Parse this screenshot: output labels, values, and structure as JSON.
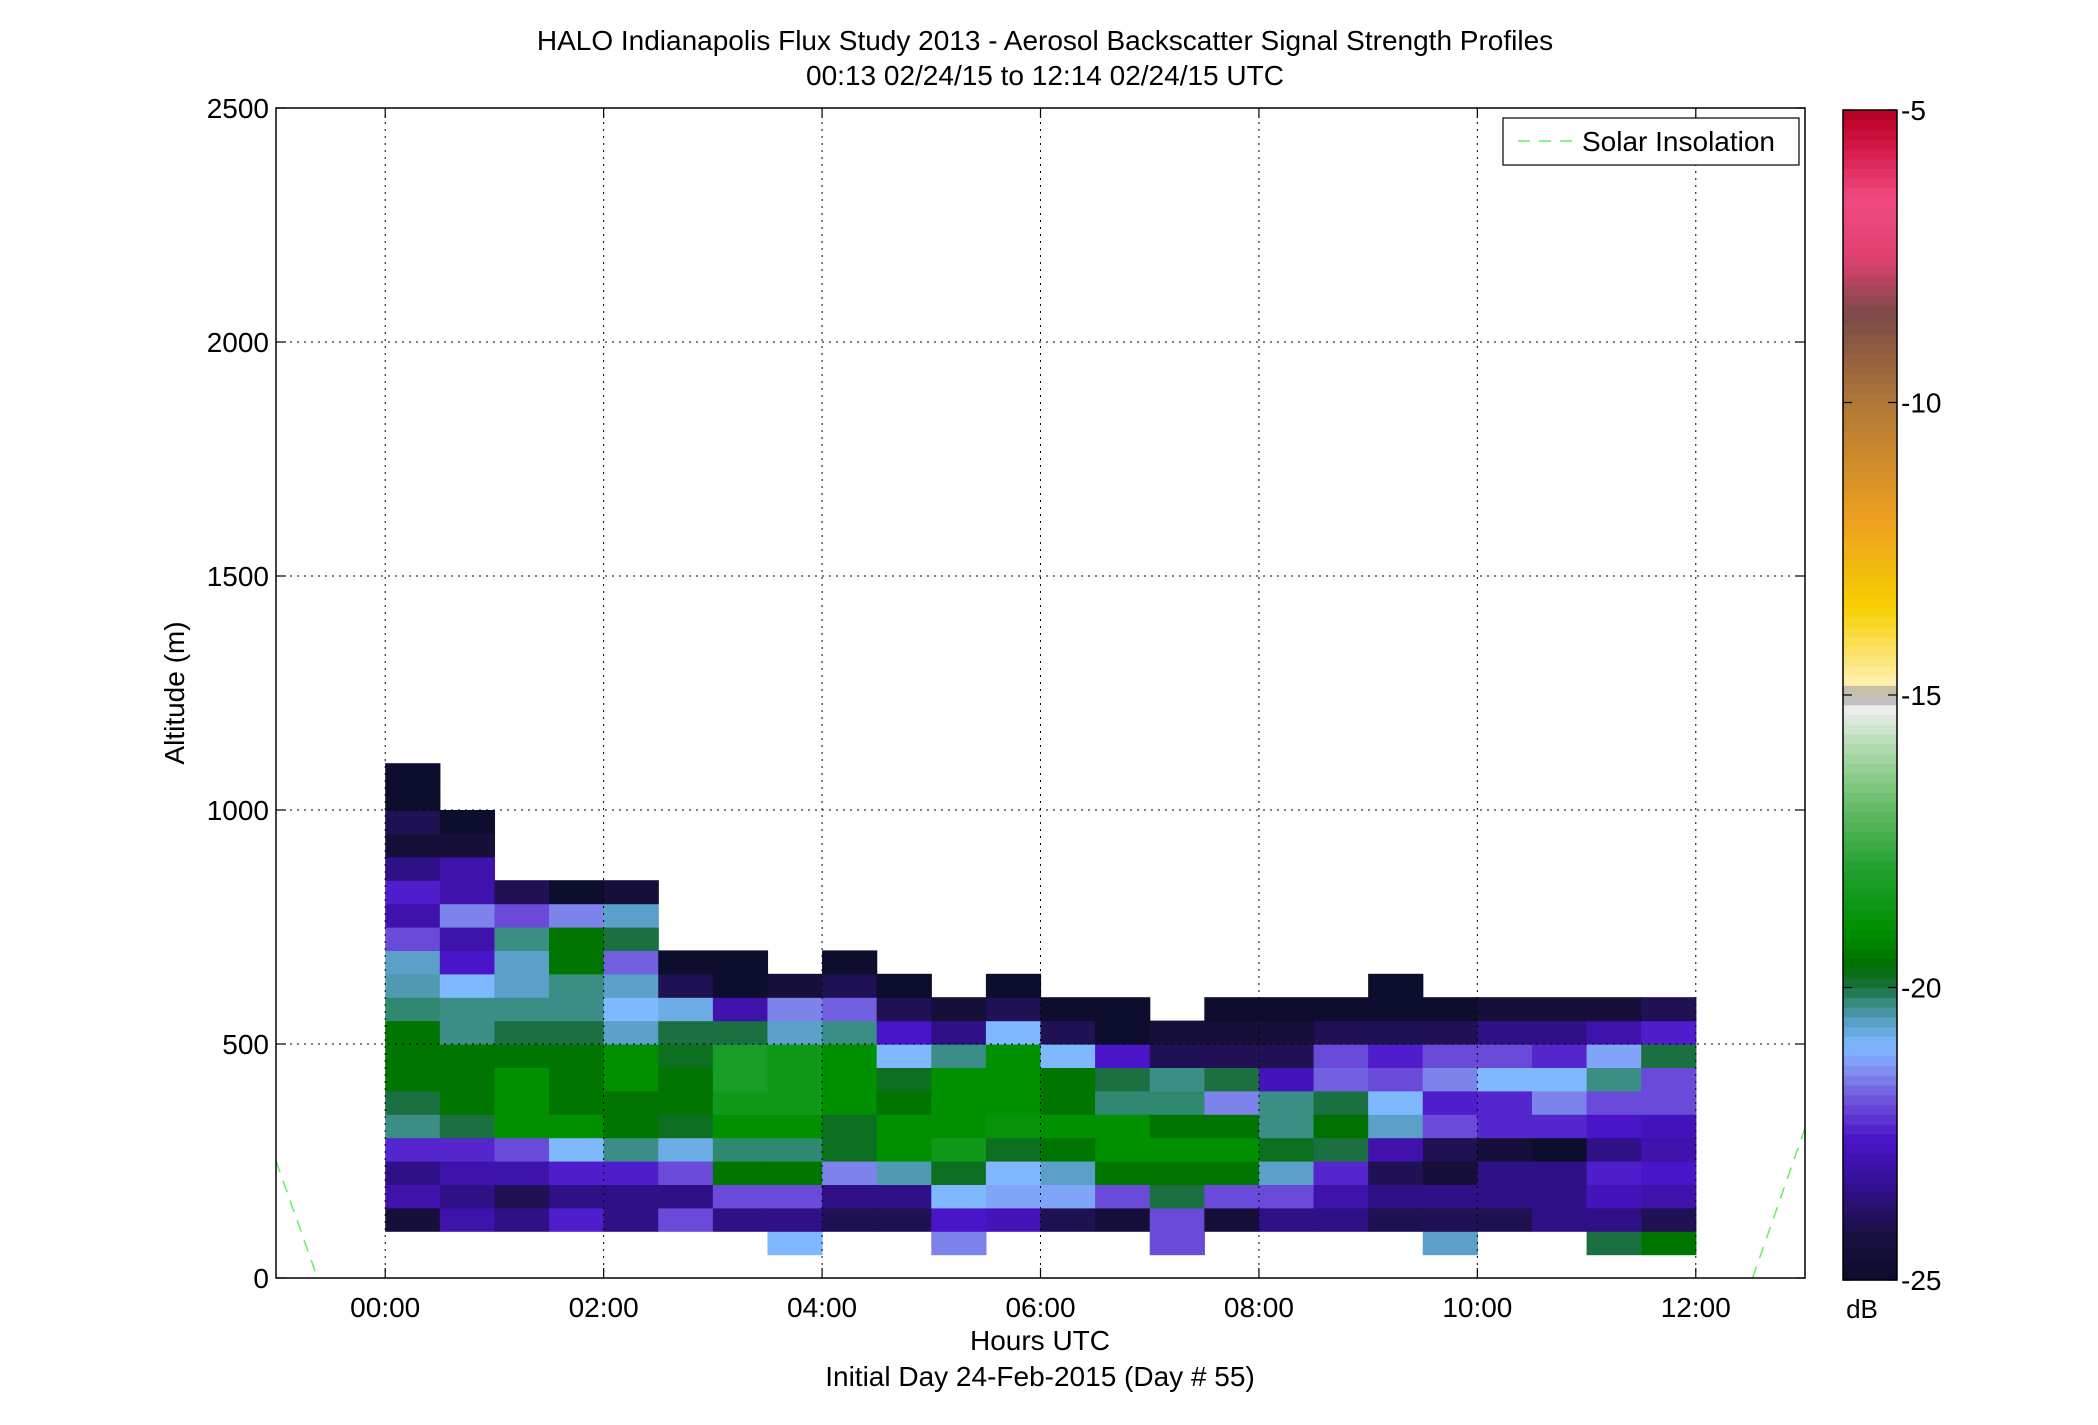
{
  "chart_data": {
    "type": "heatmap",
    "title": "HALO Indianapolis Flux Study 2013 - Aerosol Backscatter Signal Strength Profiles",
    "subtitle": "00:13 02/24/15 to 12:14 02/24/15  UTC",
    "xlabel": "Hours UTC",
    "xlabel2": "Initial Day 24-Feb-2015 (Day # 55)",
    "ylabel": "Altitude (m)",
    "xlim_hours": [
      -1.0,
      13.0
    ],
    "ylim": [
      0,
      2500
    ],
    "x_ticks": [
      {
        "value": 0,
        "label": "00:00"
      },
      {
        "value": 2,
        "label": "02:00"
      },
      {
        "value": 4,
        "label": "04:00"
      },
      {
        "value": 6,
        "label": "06:00"
      },
      {
        "value": 8,
        "label": "08:00"
      },
      {
        "value": 10,
        "label": "10:00"
      },
      {
        "value": 12,
        "label": "12:00"
      }
    ],
    "y_ticks": [
      {
        "value": 0,
        "label": "0"
      },
      {
        "value": 500,
        "label": "500"
      },
      {
        "value": 1000,
        "label": "1000"
      },
      {
        "value": 1500,
        "label": "1500"
      },
      {
        "value": 2000,
        "label": "2000"
      },
      {
        "value": 2500,
        "label": "2500"
      }
    ],
    "grid": true,
    "legend": {
      "position": "top-right",
      "entries": [
        {
          "name": "Solar Insolation",
          "color": "#66ee66",
          "style": "dashed"
        }
      ]
    },
    "colorbar": {
      "unit": "dB",
      "range": [
        -25,
        -5
      ],
      "ticks": [
        {
          "value": -5,
          "label": "-5"
        },
        {
          "value": -10,
          "label": "-10"
        },
        {
          "value": -15,
          "label": "-15"
        },
        {
          "value": -20,
          "label": "-20"
        },
        {
          "value": -25,
          "label": "-25"
        }
      ],
      "stops": [
        {
          "value": -25.0,
          "color": "#0d0d2e"
        },
        {
          "value": -24.2,
          "color": "#1a1040"
        },
        {
          "value": -23.4,
          "color": "#331090"
        },
        {
          "value": -22.6,
          "color": "#4a14c8"
        },
        {
          "value": -22.0,
          "color": "#6a4ad8"
        },
        {
          "value": -21.4,
          "color": "#8090f0"
        },
        {
          "value": -21.0,
          "color": "#80b8ff"
        },
        {
          "value": -20.6,
          "color": "#5aa0c8"
        },
        {
          "value": -20.2,
          "color": "#308870"
        },
        {
          "value": -20.0,
          "color": "#1a7040"
        },
        {
          "value": -19.6,
          "color": "#007000"
        },
        {
          "value": -19.0,
          "color": "#009000"
        },
        {
          "value": -18.0,
          "color": "#20a030"
        },
        {
          "value": -17.0,
          "color": "#60b860"
        },
        {
          "value": -16.0,
          "color": "#a8d8a8"
        },
        {
          "value": -15.2,
          "color": "#eeeeee"
        },
        {
          "value": -15.0,
          "color": "#a0a0a0"
        },
        {
          "value": -14.8,
          "color": "#fff0b0"
        },
        {
          "value": -13.5,
          "color": "#f6d000"
        },
        {
          "value": -12.0,
          "color": "#eea020"
        },
        {
          "value": -10.0,
          "color": "#b07838"
        },
        {
          "value": -8.5,
          "color": "#7a4a48"
        },
        {
          "value": -7.5,
          "color": "#e04070"
        },
        {
          "value": -6.5,
          "color": "#f04a80"
        },
        {
          "value": -5.5,
          "color": "#d01040"
        },
        {
          "value": -5.0,
          "color": "#b00020"
        }
      ]
    },
    "bin_width_hours": 0.5,
    "bin_height_m": 50,
    "columns": [
      {
        "x": 0.25,
        "y0": 100,
        "values": [
          -24.5,
          -23.0,
          -23.5,
          -22.4,
          -20.3,
          -20.0,
          -19.5,
          -19.5,
          -19.5,
          -20.2,
          -20.5,
          -20.6,
          -22.0,
          -23.0,
          -22.5,
          -23.5,
          -24.5,
          -24.0,
          -25.0,
          -25.0
        ]
      },
      {
        "x": 0.75,
        "y0": 100,
        "values": [
          -23.0,
          -23.5,
          -23.0,
          -22.4,
          -20.0,
          -19.5,
          -19.5,
          -19.5,
          -20.3,
          -20.3,
          -21.0,
          -22.6,
          -23.0,
          -21.5,
          -23.0,
          -23.0,
          -24.5,
          -25.0
        ]
      },
      {
        "x": 1.25,
        "y0": 100,
        "values": [
          -23.5,
          -24.0,
          -23.0,
          -22.0,
          -19.0,
          -19.0,
          -19.0,
          -19.5,
          -20.0,
          -20.3,
          -20.6,
          -20.6,
          -20.3,
          -22.0,
          -24.0
        ]
      },
      {
        "x": 1.75,
        "y0": 100,
        "values": [
          -22.5,
          -23.5,
          -22.5,
          -21.0,
          -19.0,
          -19.5,
          -19.5,
          -19.5,
          -20.0,
          -20.3,
          -20.3,
          -19.5,
          -19.5,
          -21.5,
          -25.0
        ]
      },
      {
        "x": 2.25,
        "y0": 100,
        "values": [
          -23.5,
          -23.5,
          -22.5,
          -20.3,
          -19.5,
          -19.5,
          -19.0,
          -19.0,
          -20.6,
          -21.0,
          -20.6,
          -21.8,
          -20.0,
          -20.6,
          -24.5
        ]
      },
      {
        "x": 2.75,
        "y0": 100,
        "values": [
          -22.0,
          -23.5,
          -22.0,
          -20.8,
          -19.8,
          -19.5,
          -19.5,
          -19.8,
          -20.0,
          -20.8,
          -24.0,
          -25.0
        ]
      },
      {
        "x": 3.25,
        "y0": 50,
        "values": [
          null,
          -23.5,
          -22.0,
          -19.5,
          -20.2,
          -19.0,
          -18.5,
          -18.2,
          -18.2,
          -20.0,
          -23.0,
          -25.0,
          -25.0
        ]
      },
      {
        "x": 3.75,
        "y0": 50,
        "values": [
          -21.0,
          -23.5,
          -22.0,
          -19.5,
          -20.2,
          -19.0,
          -18.5,
          -18.5,
          -18.5,
          -20.6,
          -21.5,
          -24.5
        ]
      },
      {
        "x": 4.25,
        "y0": 100,
        "values": [
          -24.0,
          -23.5,
          -21.5,
          -19.8,
          -19.8,
          -19.0,
          -19.0,
          -19.0,
          -20.3,
          -21.8,
          -24.0,
          -25.0
        ]
      },
      {
        "x": 4.75,
        "y0": 100,
        "values": [
          -24.0,
          -23.5,
          -20.5,
          -19.0,
          -19.0,
          -19.5,
          -19.8,
          -21.0,
          -22.6,
          -24.0,
          -25.0
        ]
      },
      {
        "x": 5.25,
        "y0": 50,
        "values": [
          -21.5,
          -22.6,
          -21.0,
          -19.8,
          -18.5,
          -19.0,
          -19.0,
          -19.0,
          -20.3,
          -23.5,
          -24.5
        ]
      },
      {
        "x": 5.75,
        "y0": 100,
        "values": [
          -22.8,
          -21.2,
          -21.0,
          -19.8,
          -18.8,
          -19.0,
          -19.0,
          -19.0,
          -21.0,
          -24.0,
          -25.0
        ]
      },
      {
        "x": 6.25,
        "y0": 100,
        "values": [
          -24.0,
          -21.2,
          -20.6,
          -19.5,
          -19.0,
          -19.5,
          -19.5,
          -21.0,
          -24.0,
          -25.0
        ]
      },
      {
        "x": 6.75,
        "y0": 100,
        "values": [
          -24.5,
          -22.0,
          -19.5,
          -19.0,
          -19.0,
          -20.2,
          -20.0,
          -22.6,
          -25.0,
          -25.0
        ]
      },
      {
        "x": 7.25,
        "y0": 50,
        "values": [
          -22.0,
          -22.0,
          -20.0,
          -19.5,
          -19.0,
          -19.5,
          -20.2,
          -20.3,
          -24.0,
          -24.5
        ]
      },
      {
        "x": 7.75,
        "y0": 100,
        "values": [
          -24.5,
          -22.0,
          -19.5,
          -19.0,
          -19.5,
          -21.5,
          -20.0,
          -24.0,
          -24.5,
          -25.0
        ]
      },
      {
        "x": 8.25,
        "y0": 100,
        "values": [
          -23.5,
          -22.0,
          -20.6,
          -19.8,
          -20.3,
          -20.3,
          -22.8,
          -24.0,
          -24.5,
          -25.0
        ]
      },
      {
        "x": 8.75,
        "y0": 100,
        "values": [
          -23.5,
          -23.0,
          -22.4,
          -20.0,
          -19.6,
          -20.0,
          -21.8,
          -22.0,
          -24.0,
          -25.0
        ]
      },
      {
        "x": 9.25,
        "y0": 100,
        "values": [
          -24.0,
          -23.5,
          -24.0,
          -23.0,
          -20.6,
          -21.0,
          -22.0,
          -22.5,
          -24.0,
          -25.0,
          -25.0
        ]
      },
      {
        "x": 9.75,
        "y0": 50,
        "values": [
          -20.6,
          -24.0,
          -23.5,
          -24.5,
          -24.0,
          -22.0,
          -22.5,
          -21.5,
          -22.0,
          -24.0,
          -25.0
        ]
      },
      {
        "x": 10.25,
        "y0": 100,
        "values": [
          -24.0,
          -23.5,
          -23.5,
          -24.5,
          -22.4,
          -22.4,
          -21.0,
          -22.0,
          -23.5,
          -24.5
        ]
      },
      {
        "x": 10.75,
        "y0": 100,
        "values": [
          -23.5,
          -23.5,
          -23.5,
          -25.0,
          -22.4,
          -21.5,
          -21.0,
          -22.4,
          -23.5,
          -24.5
        ]
      },
      {
        "x": 11.25,
        "y0": 50,
        "values": [
          -20.0,
          -23.5,
          -22.8,
          -22.5,
          -23.5,
          -22.6,
          -22.0,
          -20.3,
          -21.2,
          -23.0,
          -24.5
        ]
      },
      {
        "x": 11.75,
        "y0": 50,
        "values": [
          -19.5,
          -24.0,
          -23.0,
          -22.6,
          -23.0,
          -22.8,
          -22.0,
          -22.0,
          -20.0,
          -22.5,
          -24.0
        ]
      }
    ],
    "solar_insolation_lines": [
      {
        "points": [
          [
            -1.0,
            250
          ],
          [
            -0.62,
            0
          ]
        ]
      },
      {
        "points": [
          [
            12.52,
            0
          ],
          [
            13.0,
            320
          ]
        ]
      }
    ]
  }
}
